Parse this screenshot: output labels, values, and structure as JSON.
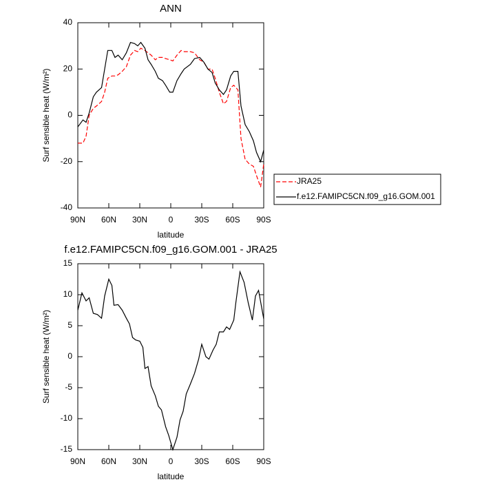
{
  "chart_data": [
    {
      "type": "line",
      "title": "ANN",
      "x_label": "latitude",
      "y_label": "Surf sensible heat (W/m²)",
      "x": [
        90,
        85,
        82,
        79,
        75,
        72,
        67,
        64,
        61,
        57,
        54,
        51,
        47,
        43,
        39,
        35,
        32,
        29,
        25,
        22,
        19,
        15,
        12,
        8,
        5,
        1,
        -2,
        -6,
        -10,
        -13,
        -19,
        -23,
        -28,
        -32,
        -36,
        -40,
        -43,
        -47,
        -51,
        -54,
        -58,
        -61,
        -65,
        -68,
        -72,
        -76,
        -80,
        -83,
        -87,
        -90
      ],
      "series": [
        {
          "name": "JRA25",
          "color": "#ff0000",
          "line_style": "dashed",
          "values": [
            -12,
            -12,
            -9,
            0,
            3,
            4,
            6,
            10,
            16,
            17,
            17,
            17.5,
            19,
            21,
            26,
            28,
            27.5,
            29,
            28,
            27,
            26,
            24,
            25,
            25,
            24.5,
            24,
            23.5,
            26,
            28,
            27.5,
            27.5,
            27,
            24,
            23,
            20,
            20,
            16,
            10,
            5,
            6,
            12,
            13,
            11,
            -10,
            -19,
            -21,
            -22,
            -26,
            -31,
            -21
          ]
        },
        {
          "name": "f.e12.FAMIPC5CN.f09_g16.GOM.001",
          "color": "#000000",
          "line_style": "solid",
          "values": [
            -5,
            -2,
            -3,
            1,
            8,
            10,
            12,
            20,
            28,
            28,
            25,
            26,
            24,
            27,
            31.5,
            31,
            30,
            31.5,
            29,
            24,
            22,
            19,
            16,
            15,
            13,
            10,
            10,
            15,
            18,
            20,
            22,
            24.5,
            25,
            23,
            20,
            18.5,
            14,
            11,
            9,
            11,
            17,
            19,
            19,
            4,
            -4,
            -7,
            -11,
            -16,
            -20,
            -15
          ]
        }
      ],
      "xlim": [
        90,
        -90
      ],
      "xticks": [
        {
          "value": 90,
          "label": "90N"
        },
        {
          "value": 60,
          "label": "60N"
        },
        {
          "value": 30,
          "label": "30N"
        },
        0,
        {
          "value": -30,
          "label": "30S"
        },
        {
          "value": -60,
          "label": "60S"
        },
        {
          "value": -90,
          "label": "90S"
        }
      ],
      "ylim": [
        -40,
        40
      ],
      "yticks": [
        -40,
        -20,
        0,
        20,
        40
      ],
      "legend": "outside-right"
    },
    {
      "type": "line",
      "title": "f.e12.FAMIPC5CN.f09_g16.GOM.001 - JRA25",
      "x_label": "latitude",
      "y_label": "Surf sensible heat (W/m²)",
      "x": [
        90,
        86,
        82,
        79,
        75,
        71,
        67,
        64,
        60,
        57,
        55,
        51,
        47,
        43,
        40,
        37,
        34,
        30,
        27,
        25,
        22,
        19,
        15,
        12,
        9,
        5,
        2,
        -2,
        -6,
        -9,
        -12,
        -15,
        -19,
        -23,
        -27,
        -30,
        -34,
        -37,
        -41,
        -44,
        -47,
        -51,
        -54,
        -57,
        -61,
        -63,
        -67,
        -71,
        -75,
        -79,
        -82,
        -85,
        -90
      ],
      "series": [
        {
          "color": "#000000",
          "line_style": "solid",
          "values": [
            7.5,
            10.3,
            9,
            9.5,
            7,
            6.8,
            6.2,
            9.8,
            12.5,
            11.5,
            8.3,
            8.4,
            7.5,
            6.2,
            5.3,
            3.1,
            2.7,
            2.5,
            1.5,
            -1.9,
            -1.6,
            -4.7,
            -6.3,
            -8,
            -8.6,
            -11.3,
            -12.7,
            -15,
            -13,
            -10.2,
            -8.8,
            -6,
            -4.4,
            -2.7,
            -0.4,
            2,
            0,
            -0.4,
            1.1,
            2,
            4,
            4,
            4.8,
            4.4,
            5.9,
            8.7,
            13.7,
            12,
            8.7,
            5.9,
            9.8,
            10.7,
            6.1
          ]
        }
      ],
      "xlim": [
        90,
        -90
      ],
      "xticks": [
        {
          "value": 90,
          "label": "90N"
        },
        {
          "value": 60,
          "label": "60N"
        },
        {
          "value": 30,
          "label": "30N"
        },
        0,
        {
          "value": -30,
          "label": "30S"
        },
        {
          "value": -60,
          "label": "60S"
        },
        {
          "value": -90,
          "label": "90S"
        }
      ],
      "ylim": [
        -15,
        15
      ],
      "yticks": [
        -15,
        -10,
        -5,
        0,
        5,
        10,
        15
      ]
    }
  ]
}
